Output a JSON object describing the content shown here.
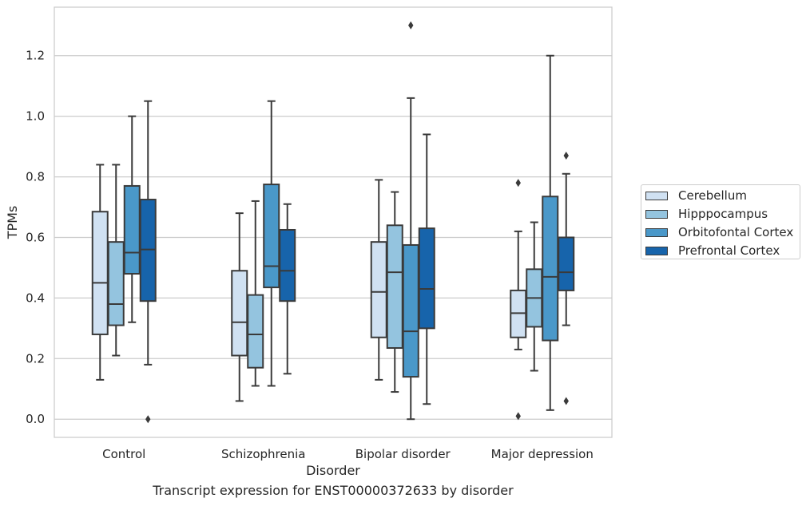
{
  "chart_data": {
    "type": "box",
    "title": "",
    "caption": "Transcript expression for ENST00000372633 by disorder",
    "xlabel": "Disorder",
    "ylabel": "TPMs",
    "ylim": [
      -0.06,
      1.36
    ],
    "yticks": [
      "0.0",
      "0.2",
      "0.4",
      "0.6",
      "0.8",
      "1.0",
      "1.2"
    ],
    "categories": [
      "Control",
      "Schizophrenia",
      "Bipolar disorder",
      "Major depression"
    ],
    "grid": "horizontal",
    "legend_position": "outside-right",
    "series": [
      {
        "name": "Cerebellum",
        "color": "#d0e1f2",
        "boxes": [
          {
            "whislo": 0.13,
            "q1": 0.28,
            "med": 0.45,
            "q3": 0.685,
            "whishi": 0.84,
            "fliers": []
          },
          {
            "whislo": 0.06,
            "q1": 0.21,
            "med": 0.32,
            "q3": 0.49,
            "whishi": 0.68,
            "fliers": []
          },
          {
            "whislo": 0.13,
            "q1": 0.27,
            "med": 0.42,
            "q3": 0.585,
            "whishi": 0.79,
            "fliers": []
          },
          {
            "whislo": 0.23,
            "q1": 0.27,
            "med": 0.35,
            "q3": 0.425,
            "whishi": 0.62,
            "fliers": [
              0.01,
              0.78
            ]
          }
        ]
      },
      {
        "name": "Hipppocampus",
        "color": "#94c4df",
        "boxes": [
          {
            "whislo": 0.21,
            "q1": 0.31,
            "med": 0.38,
            "q3": 0.585,
            "whishi": 0.84,
            "fliers": []
          },
          {
            "whislo": 0.11,
            "q1": 0.17,
            "med": 0.28,
            "q3": 0.41,
            "whishi": 0.72,
            "fliers": []
          },
          {
            "whislo": 0.09,
            "q1": 0.235,
            "med": 0.485,
            "q3": 0.64,
            "whishi": 0.75,
            "fliers": []
          },
          {
            "whislo": 0.16,
            "q1": 0.305,
            "med": 0.4,
            "q3": 0.495,
            "whishi": 0.65,
            "fliers": []
          }
        ]
      },
      {
        "name": "Orbitofontal Cortex",
        "color": "#4a98c9",
        "boxes": [
          {
            "whislo": 0.32,
            "q1": 0.48,
            "med": 0.55,
            "q3": 0.77,
            "whishi": 1.0,
            "fliers": []
          },
          {
            "whislo": 0.11,
            "q1": 0.435,
            "med": 0.505,
            "q3": 0.775,
            "whishi": 1.05,
            "fliers": []
          },
          {
            "whislo": 0.0,
            "q1": 0.14,
            "med": 0.29,
            "q3": 0.575,
            "whishi": 1.06,
            "fliers": [
              1.3
            ]
          },
          {
            "whislo": 0.03,
            "q1": 0.26,
            "med": 0.47,
            "q3": 0.735,
            "whishi": 1.2,
            "fliers": []
          }
        ]
      },
      {
        "name": "Prefrontal Cortex",
        "color": "#1764ab",
        "boxes": [
          {
            "whislo": 0.18,
            "q1": 0.39,
            "med": 0.56,
            "q3": 0.725,
            "whishi": 1.05,
            "fliers": [
              0.0
            ]
          },
          {
            "whislo": 0.15,
            "q1": 0.39,
            "med": 0.49,
            "q3": 0.625,
            "whishi": 0.71,
            "fliers": []
          },
          {
            "whislo": 0.05,
            "q1": 0.3,
            "med": 0.43,
            "q3": 0.63,
            "whishi": 0.94,
            "fliers": []
          },
          {
            "whislo": 0.31,
            "q1": 0.425,
            "med": 0.485,
            "q3": 0.6,
            "whishi": 0.81,
            "fliers": [
              0.06,
              0.87
            ]
          }
        ]
      }
    ]
  }
}
